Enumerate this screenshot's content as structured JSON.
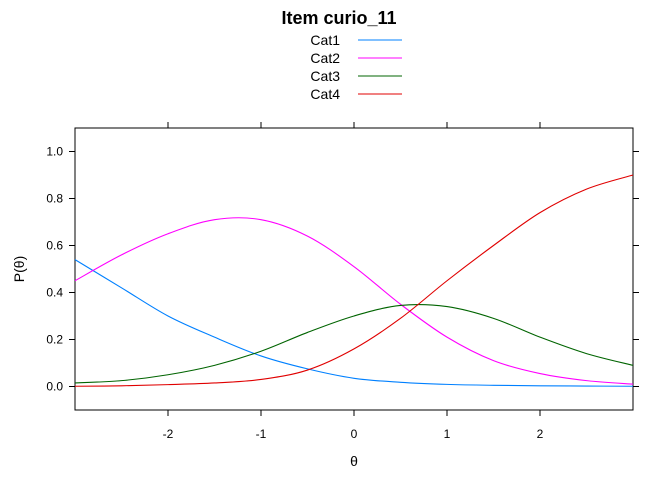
{
  "chart_data": {
    "type": "line",
    "title": "Item curio_11",
    "xlabel": "θ",
    "ylabel": "P(θ)",
    "xlim": [
      -3,
      3
    ],
    "ylim": [
      -0.1,
      1.1
    ],
    "xticks": [
      -2,
      -1,
      0,
      1,
      2
    ],
    "yticks": [
      0.0,
      0.2,
      0.4,
      0.6,
      0.8,
      1.0
    ],
    "xtick_labels": [
      "-2",
      "-1",
      "0",
      "1",
      "2"
    ],
    "ytick_labels": [
      "0.0",
      "0.2",
      "0.4",
      "0.6",
      "0.8",
      "1.0"
    ],
    "grid": false,
    "legend_position": "top",
    "x": [
      -3,
      -2.5,
      -2,
      -1.5,
      -1,
      -0.5,
      0,
      0.5,
      1,
      1.5,
      2,
      2.5,
      3
    ],
    "series": [
      {
        "name": "Cat1",
        "color": "#0080ff",
        "values": [
          0.54,
          0.42,
          0.3,
          0.21,
          0.13,
          0.075,
          0.035,
          0.018,
          0.009,
          0.005,
          0.003,
          0.002,
          0.001
        ]
      },
      {
        "name": "Cat2",
        "color": "#ff00ff",
        "values": [
          0.45,
          0.56,
          0.65,
          0.71,
          0.71,
          0.64,
          0.51,
          0.35,
          0.21,
          0.11,
          0.055,
          0.025,
          0.01
        ]
      },
      {
        "name": "Cat3",
        "color": "#006400",
        "values": [
          0.015,
          0.025,
          0.05,
          0.09,
          0.15,
          0.23,
          0.3,
          0.345,
          0.34,
          0.29,
          0.21,
          0.14,
          0.09
        ]
      },
      {
        "name": "Cat4",
        "color": "#e00000",
        "values": [
          0.001,
          0.003,
          0.008,
          0.015,
          0.03,
          0.07,
          0.16,
          0.29,
          0.45,
          0.6,
          0.74,
          0.84,
          0.9
        ]
      }
    ]
  }
}
